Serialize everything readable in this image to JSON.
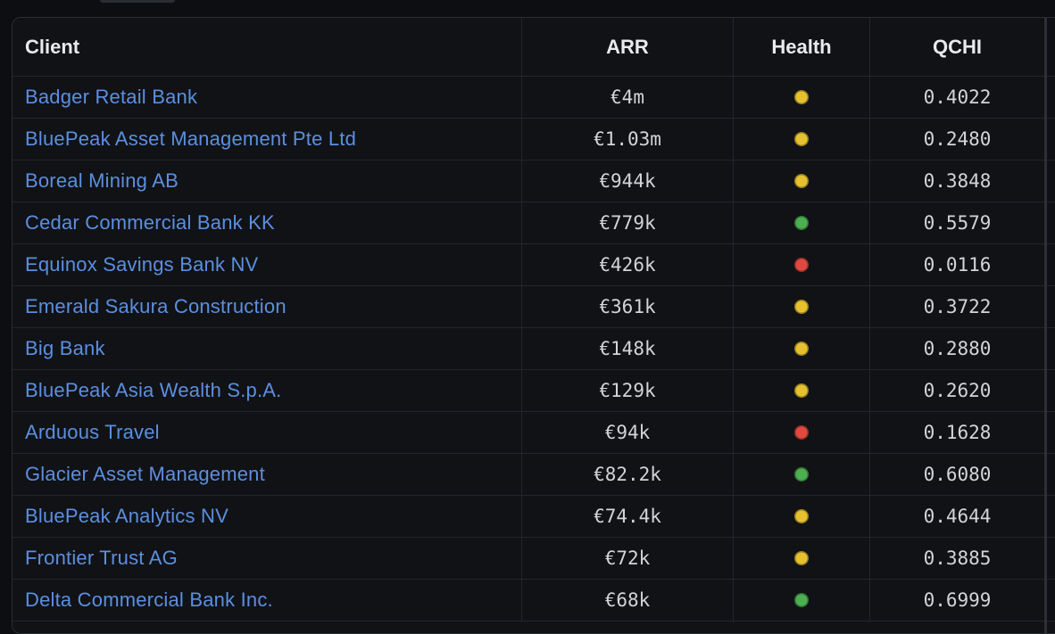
{
  "table": {
    "headers": {
      "client": "Client",
      "arr": "ARR",
      "health": "Health",
      "qchi": "QCHI"
    },
    "health_colors": {
      "yellow": "#e6c12f",
      "green": "#4caf50",
      "red": "#e0493f"
    },
    "rows": [
      {
        "client": "Badger Retail Bank",
        "arr": "€4m",
        "health": "yellow",
        "qchi": "0.4022"
      },
      {
        "client": "BluePeak Asset Management Pte Ltd",
        "arr": "€1.03m",
        "health": "yellow",
        "qchi": "0.2480"
      },
      {
        "client": "Boreal Mining AB",
        "arr": "€944k",
        "health": "yellow",
        "qchi": "0.3848"
      },
      {
        "client": "Cedar Commercial Bank KK",
        "arr": "€779k",
        "health": "green",
        "qchi": "0.5579"
      },
      {
        "client": "Equinox Savings Bank NV",
        "arr": "€426k",
        "health": "red",
        "qchi": "0.0116"
      },
      {
        "client": "Emerald Sakura Construction",
        "arr": "€361k",
        "health": "yellow",
        "qchi": "0.3722"
      },
      {
        "client": "Big Bank",
        "arr": "€148k",
        "health": "yellow",
        "qchi": "0.2880"
      },
      {
        "client": "BluePeak Asia Wealth S.p.A.",
        "arr": "€129k",
        "health": "yellow",
        "qchi": "0.2620"
      },
      {
        "client": "Arduous Travel",
        "arr": "€94k",
        "health": "red",
        "qchi": "0.1628"
      },
      {
        "client": "Glacier Asset Management",
        "arr": "€82.2k",
        "health": "green",
        "qchi": "0.6080"
      },
      {
        "client": "BluePeak Analytics NV",
        "arr": "€74.4k",
        "health": "yellow",
        "qchi": "0.4644"
      },
      {
        "client": "Frontier Trust AG",
        "arr": "€72k",
        "health": "yellow",
        "qchi": "0.3885"
      },
      {
        "client": "Delta Commercial Bank Inc.",
        "arr": "€68k",
        "health": "green",
        "qchi": "0.6999"
      }
    ]
  }
}
